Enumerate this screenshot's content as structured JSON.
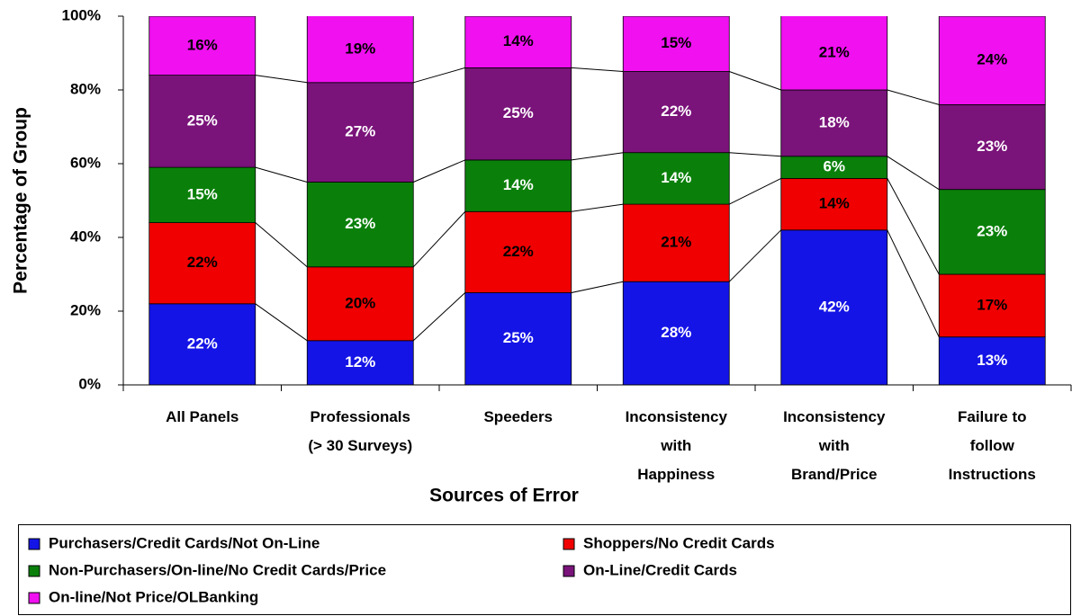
{
  "chart_data": {
    "type": "stacked_bar_percent",
    "x_label": "Sources of Error",
    "y_label": "Percentage of Group",
    "categories": [
      "All Panels",
      "Professionals\n(> 30 Surveys)",
      "Speeders",
      "Inconsistency\nwith\nHappiness",
      "Inconsistency\nwith\nBrand/Price",
      "Failure to\nfollow\nInstructions"
    ],
    "ylim": [
      0,
      100
    ],
    "yticks": [
      {
        "value": 0,
        "label": "0%"
      },
      {
        "value": 20,
        "label": "20%"
      },
      {
        "value": 40,
        "label": "40%"
      },
      {
        "value": 60,
        "label": "60%"
      },
      {
        "value": 80,
        "label": "80%"
      },
      {
        "value": 100,
        "label": "100%"
      }
    ],
    "legend": "bottom",
    "series": [
      {
        "name": "Purchasers/Credit Cards/Not On-Line",
        "color": "#1414e6",
        "label_color": "#ffffff",
        "values": [
          22,
          12,
          25,
          28,
          42,
          13
        ],
        "value_labels": [
          "22%",
          "12%",
          "25%",
          "28%",
          "42%",
          "13%"
        ]
      },
      {
        "name": "Shoppers/No Credit Cards",
        "color": "#f00000",
        "label_color": "#000000",
        "values": [
          22,
          20,
          22,
          21,
          14,
          17
        ],
        "value_labels": [
          "22%",
          "20%",
          "22%",
          "21%",
          "14%",
          "17%"
        ]
      },
      {
        "name": "Non-Purchasers/On-line/No Credit Cards/Price",
        "color": "#0a800a",
        "label_color": "#ffffff",
        "values": [
          15,
          23,
          14,
          14,
          6,
          23
        ],
        "value_labels": [
          "15%",
          "23%",
          "14%",
          "14%",
          "6%",
          "23%"
        ]
      },
      {
        "name": "On-Line/Credit Cards",
        "color": "#7a137a",
        "label_color": "#ffffff",
        "values": [
          25,
          27,
          25,
          22,
          18,
          23
        ],
        "value_labels": [
          "25%",
          "27%",
          "25%",
          "22%",
          "18%",
          "23%"
        ]
      },
      {
        "name": "On-line/Not Price/OLBanking",
        "color": "#f010f0",
        "label_color": "#000000",
        "values": [
          16,
          19,
          14,
          15,
          21,
          24
        ],
        "value_labels": [
          "16%",
          "19%",
          "14%",
          "15%",
          "21%",
          "24%"
        ]
      }
    ]
  }
}
